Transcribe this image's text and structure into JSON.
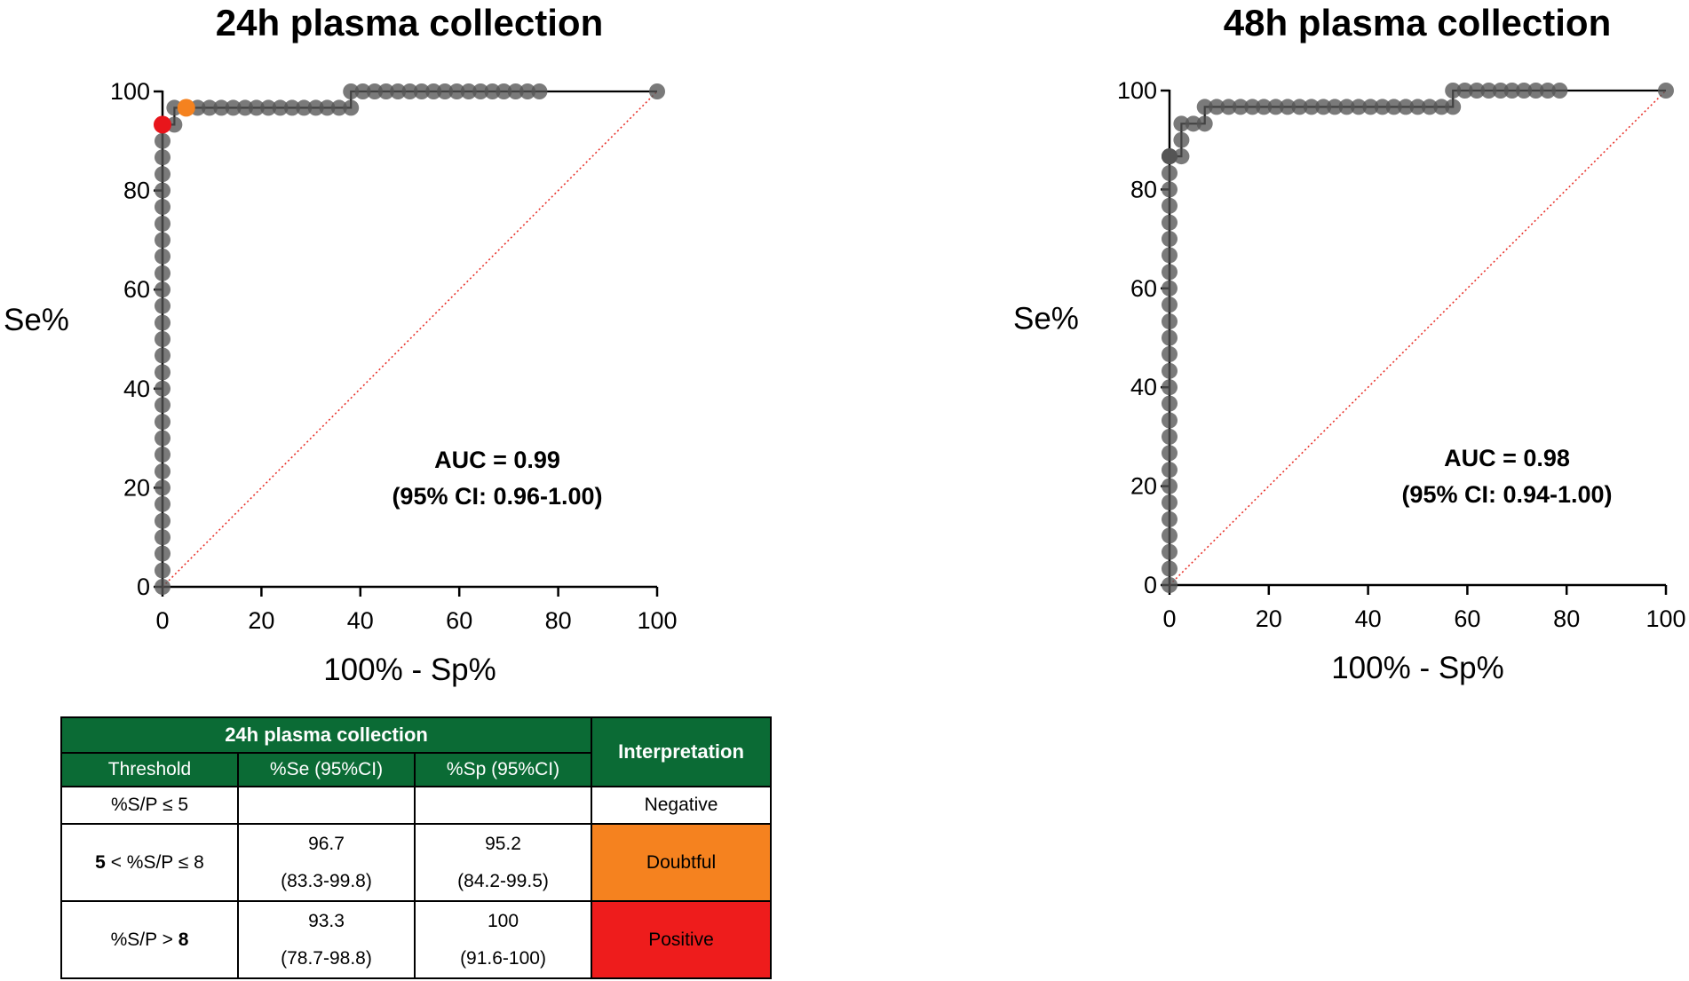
{
  "chart_data": [
    {
      "type": "scatter",
      "title": "24h plasma collection",
      "xlabel": "100% - Sp%",
      "ylabel": "Se%",
      "xlim": [
        0,
        100
      ],
      "ylim": [
        0,
        100
      ],
      "xticks": [
        "0",
        "20",
        "40",
        "60",
        "80",
        "100"
      ],
      "yticks": [
        "0",
        "20",
        "40",
        "60",
        "80",
        "100"
      ],
      "grid": false,
      "annotation": [
        "AUC = 0.99",
        "(95% CI: 0.96-1.00)"
      ],
      "reference_line": {
        "from": [
          0,
          0
        ],
        "to": [
          100,
          100
        ],
        "color": "#e8352e",
        "style": "dotted"
      },
      "series": [
        {
          "color": "#555555",
          "x": [
            0,
            0,
            0,
            0,
            0,
            0,
            0,
            0,
            0,
            0,
            0,
            0,
            0,
            0,
            0,
            0,
            0,
            0,
            0,
            0,
            0,
            0,
            0,
            0,
            0,
            0,
            0,
            0,
            0,
            0,
            2.4,
            2.4,
            7.1,
            9.5,
            11.9,
            14.3,
            16.7,
            19,
            21.4,
            23.8,
            26.2,
            28.6,
            31,
            33.3,
            35.7,
            38.1,
            38.1,
            40.5,
            42.9,
            45.2,
            47.6,
            50,
            52.4,
            54.8,
            57.1,
            59.5,
            61.9,
            64.3,
            66.7,
            69,
            71.4,
            73.8,
            76.2,
            100
          ],
          "y": [
            0,
            3.3,
            6.7,
            10,
            13.3,
            16.7,
            20,
            23.3,
            26.7,
            30,
            33.3,
            36.7,
            40,
            43.3,
            46.7,
            50,
            53.3,
            56.7,
            60,
            63.3,
            66.7,
            70,
            73.3,
            76.7,
            80,
            83.3,
            86.7,
            90,
            93.3,
            93.3,
            93.3,
            96.7,
            96.7,
            96.7,
            96.7,
            96.7,
            96.7,
            96.7,
            96.7,
            96.7,
            96.7,
            96.7,
            96.7,
            96.7,
            96.7,
            96.7,
            100,
            100,
            100,
            100,
            100,
            100,
            100,
            100,
            100,
            100,
            100,
            100,
            100,
            100,
            100,
            100,
            100,
            100
          ]
        }
      ],
      "highlights": [
        {
          "x": 0,
          "y": 93.3,
          "color": "#e8151b"
        },
        {
          "x": 4.8,
          "y": 96.7,
          "color": "#f5821f"
        }
      ]
    },
    {
      "type": "scatter",
      "title": "48h plasma collection",
      "xlabel": "100% - Sp%",
      "ylabel": "Se%",
      "xlim": [
        0,
        100
      ],
      "ylim": [
        0,
        100
      ],
      "xticks": [
        "0",
        "20",
        "40",
        "60",
        "80",
        "100"
      ],
      "yticks": [
        "0",
        "20",
        "40",
        "60",
        "80",
        "100"
      ],
      "grid": false,
      "annotation": [
        "AUC = 0.98",
        "(95% CI: 0.94-1.00)"
      ],
      "reference_line": {
        "from": [
          0,
          0
        ],
        "to": [
          100,
          100
        ],
        "color": "#e8352e",
        "style": "dotted"
      },
      "series": [
        {
          "color": "#555555",
          "x": [
            0,
            0,
            0,
            0,
            0,
            0,
            0,
            0,
            0,
            0,
            0,
            0,
            0,
            0,
            0,
            0,
            0,
            0,
            0,
            0,
            0,
            0,
            0,
            0,
            0,
            0,
            0,
            0,
            0,
            0,
            2.4,
            2.4,
            2.4,
            4.8,
            7.1,
            7.1,
            9.5,
            11.9,
            14.3,
            16.7,
            19,
            21.4,
            23.8,
            26.2,
            28.6,
            31,
            33.3,
            35.7,
            38.1,
            40.5,
            42.9,
            45.2,
            47.6,
            50,
            52.4,
            54.8,
            57.1,
            57.1,
            59.5,
            61.9,
            64.3,
            66.7,
            69,
            71.4,
            73.8,
            76.2,
            78.6,
            100
          ],
          "y": [
            0,
            3.3,
            6.7,
            10,
            13.3,
            16.7,
            20,
            23.3,
            26.7,
            30,
            33.3,
            36.7,
            40,
            43.3,
            46.7,
            50,
            53.3,
            56.7,
            60,
            63.3,
            66.7,
            70,
            73.3,
            76.7,
            80,
            83.3,
            86.7,
            86.7,
            86.7,
            86.7,
            86.7,
            90,
            93.3,
            93.3,
            93.3,
            96.7,
            96.7,
            96.7,
            96.7,
            96.7,
            96.7,
            96.7,
            96.7,
            96.7,
            96.7,
            96.7,
            96.7,
            96.7,
            96.7,
            96.7,
            96.7,
            96.7,
            96.7,
            96.7,
            96.7,
            96.7,
            96.7,
            100,
            100,
            100,
            100,
            100,
            100,
            100,
            100,
            100,
            100,
            100
          ]
        }
      ],
      "highlights": []
    }
  ],
  "table": {
    "title": "24h plasma collection",
    "interpretation_header": "Interpretation",
    "columns": [
      "Threshold",
      "%Se (95%CI)",
      "%Sp (95%CI)"
    ],
    "rows": [
      {
        "threshold_pre": "",
        "threshold_main": "%S/P ≤ 5",
        "threshold_bold": "",
        "se": "",
        "se_ci": "",
        "sp": "",
        "sp_ci": "",
        "interpretation": "Negative",
        "color": "#ffffff"
      },
      {
        "threshold_pre": "5",
        "threshold_main": " < %S/P ≤ 8",
        "threshold_bold": "",
        "se": "96.7",
        "se_ci": "(83.3-99.8)",
        "sp": "95.2",
        "sp_ci": "(84.2-99.5)",
        "interpretation": "Doubtful",
        "color": "#f5821f"
      },
      {
        "threshold_pre": "",
        "threshold_main": "%S/P > ",
        "threshold_bold": "8",
        "se": "93.3",
        "se_ci": "(78.7-98.8)",
        "sp": "100",
        "sp_ci": "(91.6-100)",
        "interpretation": "Positive",
        "color": "#ee1c1c"
      }
    ]
  }
}
